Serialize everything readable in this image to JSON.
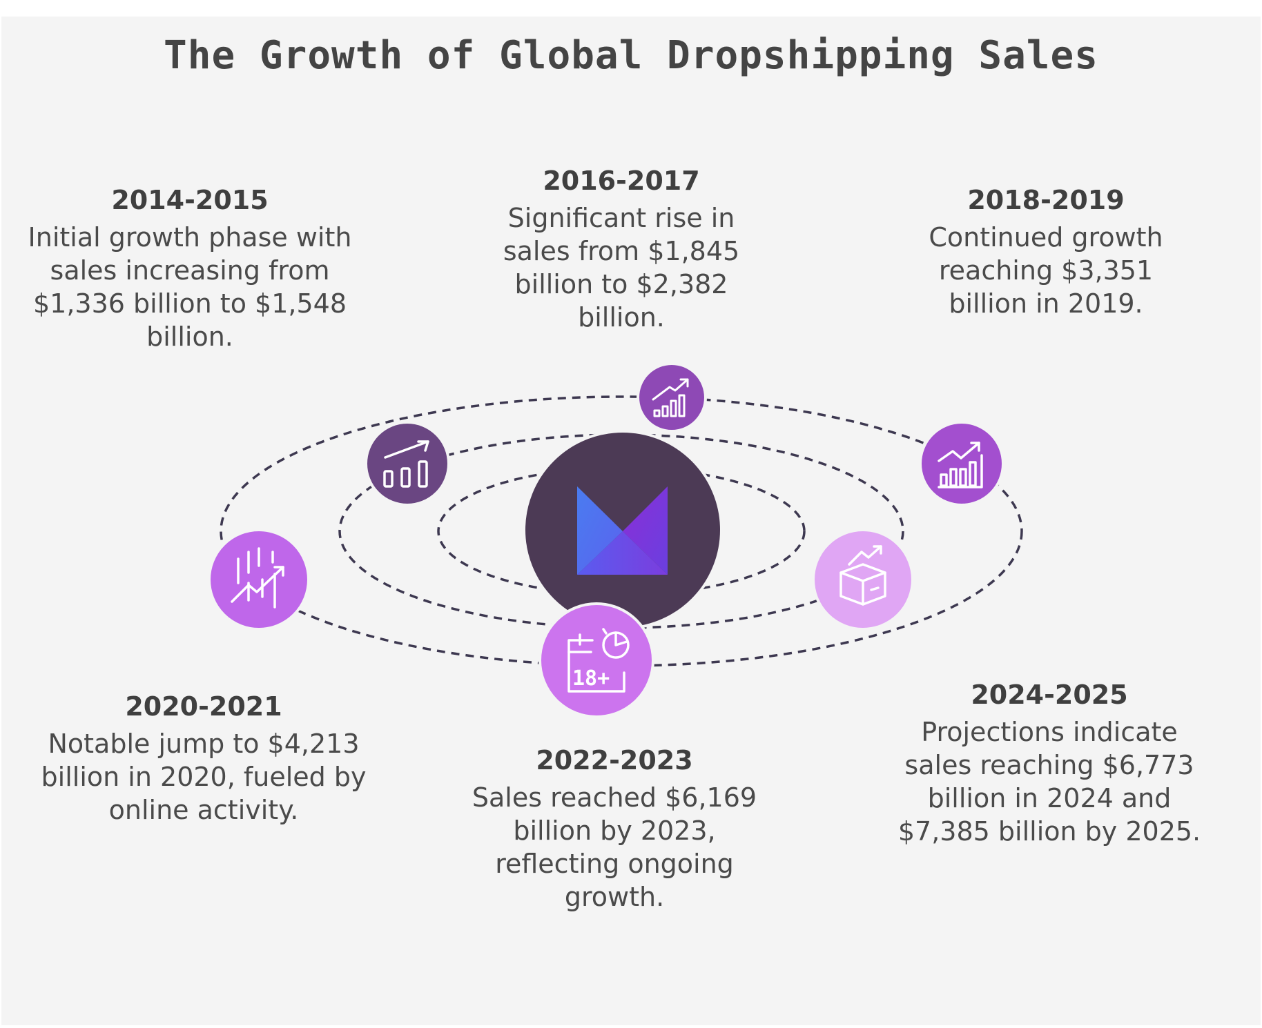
{
  "title": "The Growth of Global Dropshipping Sales",
  "colors": {
    "background": "#f4f4f4",
    "hub": "#4c3a55",
    "orbit": "#3d3850",
    "node_2014": "#6a4682",
    "node_2016": "#8e49b5",
    "node_2018": "#a34fcf",
    "node_2020": "#bf67ea",
    "node_2022": "#cc74ee",
    "node_2024": "#e0a6f4"
  },
  "milestones": [
    {
      "period": "2014-2015",
      "description": "Initial growth phase with sales increasing from $1,336 billion to $1,548 billion.",
      "icon": "bar-chart-growth-icon"
    },
    {
      "period": "2016-2017",
      "description": "Significant rise in sales from $1,845 billion to $2,382 billion.",
      "icon": "rising-bar-chart-icon"
    },
    {
      "period": "2018-2019",
      "description": "Continued growth reaching $3,351 billion in 2019.",
      "icon": "trend-chart-icon"
    },
    {
      "period": "2020-2021",
      "description": "Notable jump to $4,213 billion in 2020, fueled by online activity.",
      "icon": "stock-trend-icon"
    },
    {
      "period": "2022-2023",
      "description": "Sales reached $6,169 billion by 2023, reflecting ongoing growth.",
      "icon": "calendar-18-plus-icon",
      "icon_text": "18+"
    },
    {
      "period": "2024-2025",
      "description": "Projections indicate sales reaching $6,773 billion in 2024 and $7,385 billion by 2025.",
      "icon": "box-growth-icon"
    }
  ]
}
